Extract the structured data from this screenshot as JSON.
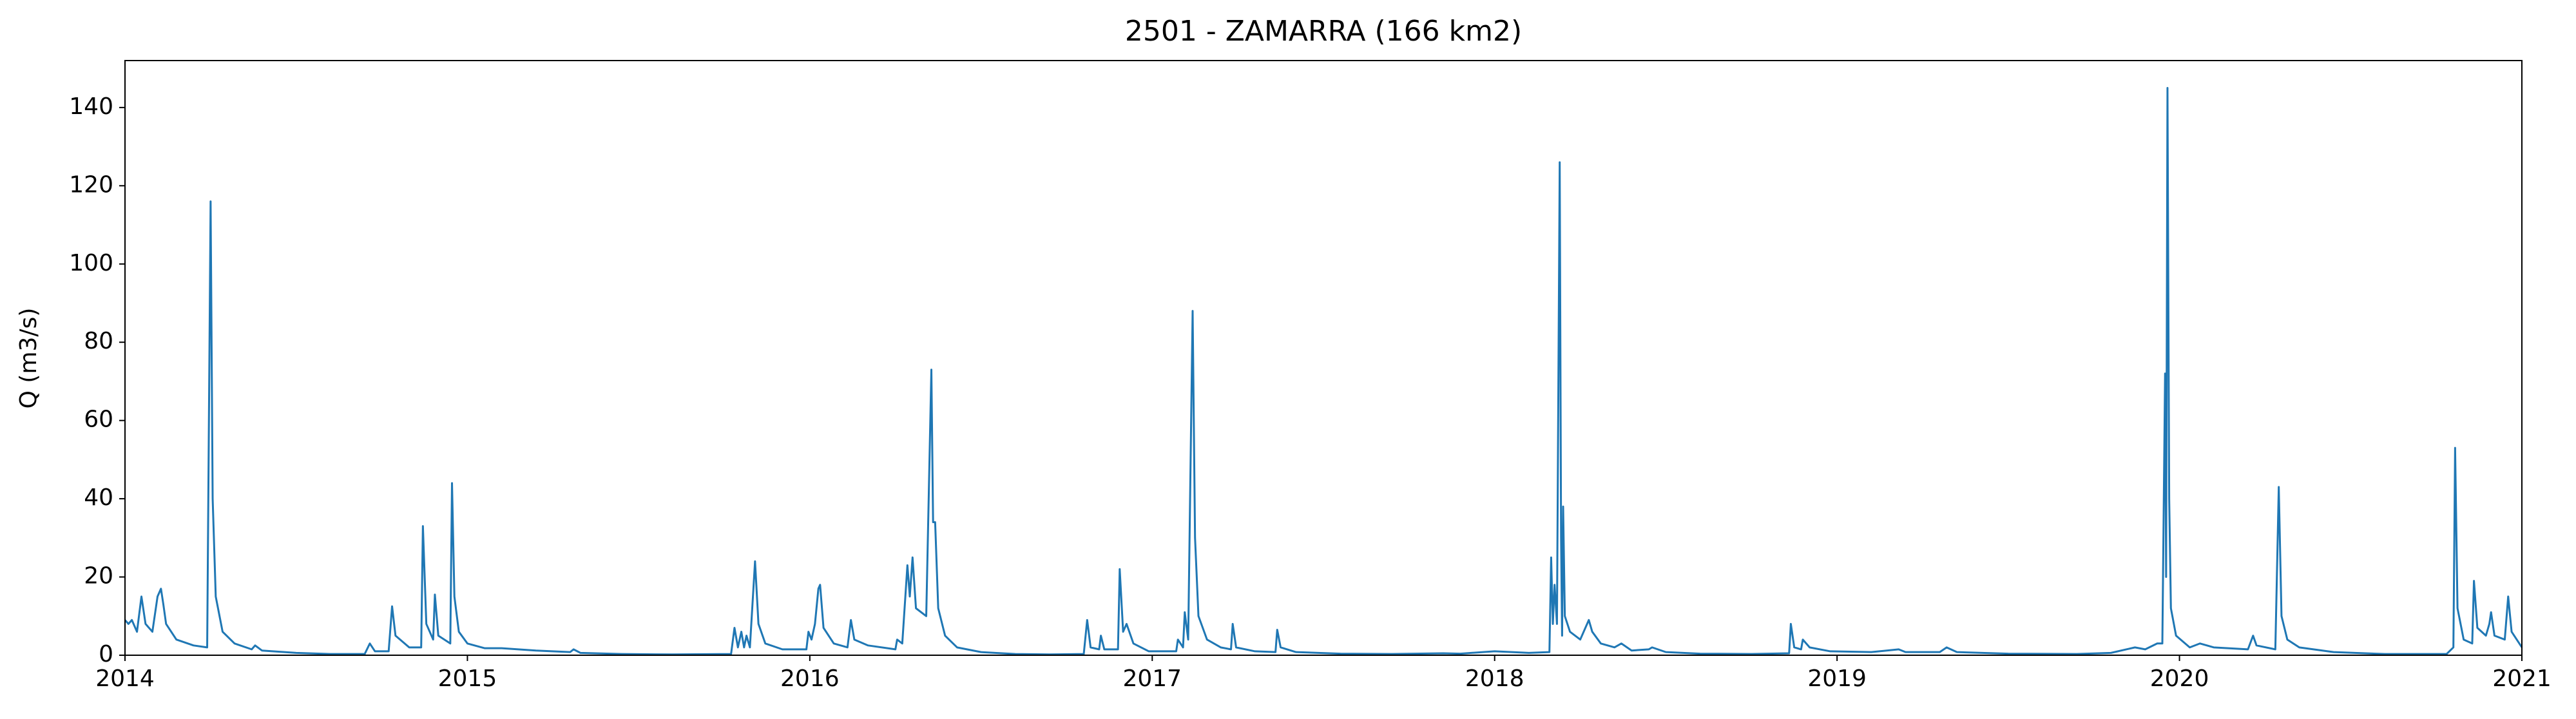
{
  "chart_data": {
    "type": "line",
    "title": "2501 - ZAMARRA (166 km2)",
    "y_label": "Q (m3/s)",
    "x": [
      2014.0,
      2014.01,
      2014.02,
      2014.035,
      2014.048,
      2014.06,
      2014.08,
      2014.095,
      2014.105,
      2014.112,
      2014.12,
      2014.15,
      2014.2,
      2014.24,
      2014.25,
      2014.256,
      2014.265,
      2014.285,
      2014.32,
      2014.37,
      2014.38,
      2014.4,
      2014.5,
      2014.6,
      2014.7,
      2014.715,
      2014.73,
      2014.77,
      2014.78,
      2014.79,
      2014.83,
      2014.865,
      2014.87,
      2014.88,
      2014.9,
      2014.905,
      2014.915,
      2014.95,
      2014.955,
      2014.962,
      2014.975,
      2015.0,
      2015.05,
      2015.1,
      2015.2,
      2015.3,
      2015.31,
      2015.33,
      2015.45,
      2015.6,
      2015.77,
      2015.78,
      2015.79,
      2015.8,
      2015.808,
      2015.815,
      2015.825,
      2015.84,
      2015.85,
      2015.87,
      2015.92,
      2015.99,
      2015.996,
      2016.005,
      2016.015,
      2016.025,
      2016.03,
      2016.04,
      2016.07,
      2016.11,
      2016.12,
      2016.13,
      2016.17,
      2016.25,
      2016.255,
      2016.27,
      2016.285,
      2016.292,
      2016.3,
      2016.31,
      2016.34,
      2016.355,
      2016.36,
      2016.366,
      2016.375,
      2016.395,
      2016.43,
      2016.5,
      2016.6,
      2016.7,
      2016.8,
      2016.81,
      2016.82,
      2016.845,
      2016.85,
      2016.86,
      2016.9,
      2016.905,
      2016.915,
      2016.925,
      2016.945,
      2016.99,
      2017.0,
      2017.07,
      2017.075,
      2017.09,
      2017.095,
      2017.105,
      2017.118,
      2017.125,
      2017.135,
      2017.16,
      2017.2,
      2017.23,
      2017.235,
      2017.245,
      2017.3,
      2017.36,
      2017.365,
      2017.375,
      2017.42,
      2017.55,
      2017.7,
      2017.85,
      2017.9,
      2018.0,
      2018.1,
      2018.16,
      2018.165,
      2018.17,
      2018.175,
      2018.182,
      2018.19,
      2018.194,
      2018.197,
      2018.2,
      2018.205,
      2018.22,
      2018.25,
      2018.275,
      2018.285,
      2018.31,
      2018.35,
      2018.37,
      2018.4,
      2018.45,
      2018.46,
      2018.5,
      2018.6,
      2018.75,
      2018.86,
      2018.865,
      2018.875,
      2018.895,
      2018.9,
      2018.92,
      2018.98,
      2019.1,
      2019.18,
      2019.2,
      2019.3,
      2019.32,
      2019.35,
      2019.5,
      2019.7,
      2019.8,
      2019.87,
      2019.9,
      2019.935,
      2019.95,
      2019.958,
      2019.961,
      2019.965,
      2019.97,
      2019.975,
      2019.99,
      2020.03,
      2020.06,
      2020.1,
      2020.2,
      2020.215,
      2020.225,
      2020.28,
      2020.29,
      2020.298,
      2020.315,
      2020.35,
      2020.45,
      2020.6,
      2020.78,
      2020.8,
      2020.805,
      2020.812,
      2020.83,
      2020.855,
      2020.86,
      2020.87,
      2020.895,
      2020.905,
      2020.91,
      2020.92,
      2020.95,
      2020.96,
      2020.97,
      2020.985,
      2021.0
    ],
    "series": [
      {
        "color": "#1f77b4",
        "values": [
          9,
          8,
          9,
          6,
          15,
          8,
          6,
          15,
          17,
          13,
          8,
          4,
          2.5,
          2,
          116,
          40,
          15,
          6,
          3,
          1.5,
          2.5,
          1.2,
          0.6,
          0.3,
          0.3,
          3,
          1,
          1,
          12.5,
          5,
          2,
          2,
          33,
          8,
          4,
          15.5,
          5,
          3,
          44,
          15,
          6,
          3,
          1.8,
          1.8,
          1.2,
          0.8,
          1.5,
          0.6,
          0.3,
          0.2,
          0.3,
          7,
          2,
          6,
          2,
          5,
          2,
          24,
          8,
          3,
          1.5,
          1.5,
          6,
          4,
          8,
          17,
          18,
          7,
          3,
          2,
          9,
          4,
          2.5,
          1.5,
          4,
          3,
          23,
          15,
          25,
          12,
          10,
          73,
          34,
          34,
          12,
          5,
          2,
          0.8,
          0.3,
          0.2,
          0.3,
          9,
          2,
          1.5,
          5,
          1.5,
          1.5,
          22,
          6,
          8,
          3,
          1,
          1,
          1,
          4,
          2,
          11,
          4,
          88,
          30,
          10,
          4,
          2,
          1.5,
          8,
          2,
          1,
          0.8,
          6.5,
          2,
          0.8,
          0.4,
          0.3,
          0.5,
          0.4,
          1,
          0.6,
          0.8,
          25,
          8,
          18,
          8,
          126,
          30,
          5,
          38,
          10,
          6,
          4,
          9,
          6,
          3,
          2,
          3,
          1.2,
          1.5,
          2,
          0.8,
          0.4,
          0.3,
          0.5,
          8,
          2,
          1.5,
          4,
          2,
          1,
          0.8,
          1.5,
          0.8,
          0.8,
          2,
          0.8,
          0.4,
          0.3,
          0.6,
          2,
          1.5,
          3,
          3,
          72,
          20,
          145,
          40,
          12,
          5,
          2,
          3,
          2,
          1.5,
          5,
          2.5,
          1.5,
          43,
          10,
          4,
          2,
          0.8,
          0.3,
          0.3,
          2,
          53,
          12,
          4,
          3,
          19,
          7,
          5,
          8,
          11,
          5,
          4,
          15,
          6,
          4,
          2
        ]
      }
    ],
    "xlim": [
      2014,
      2021
    ],
    "xticks": [
      2014,
      2015,
      2016,
      2017,
      2018,
      2019,
      2020,
      2021
    ],
    "ylim": [
      0,
      152
    ],
    "yticks": [
      0,
      20,
      40,
      60,
      80,
      100,
      120,
      140
    ],
    "grid": false
  }
}
